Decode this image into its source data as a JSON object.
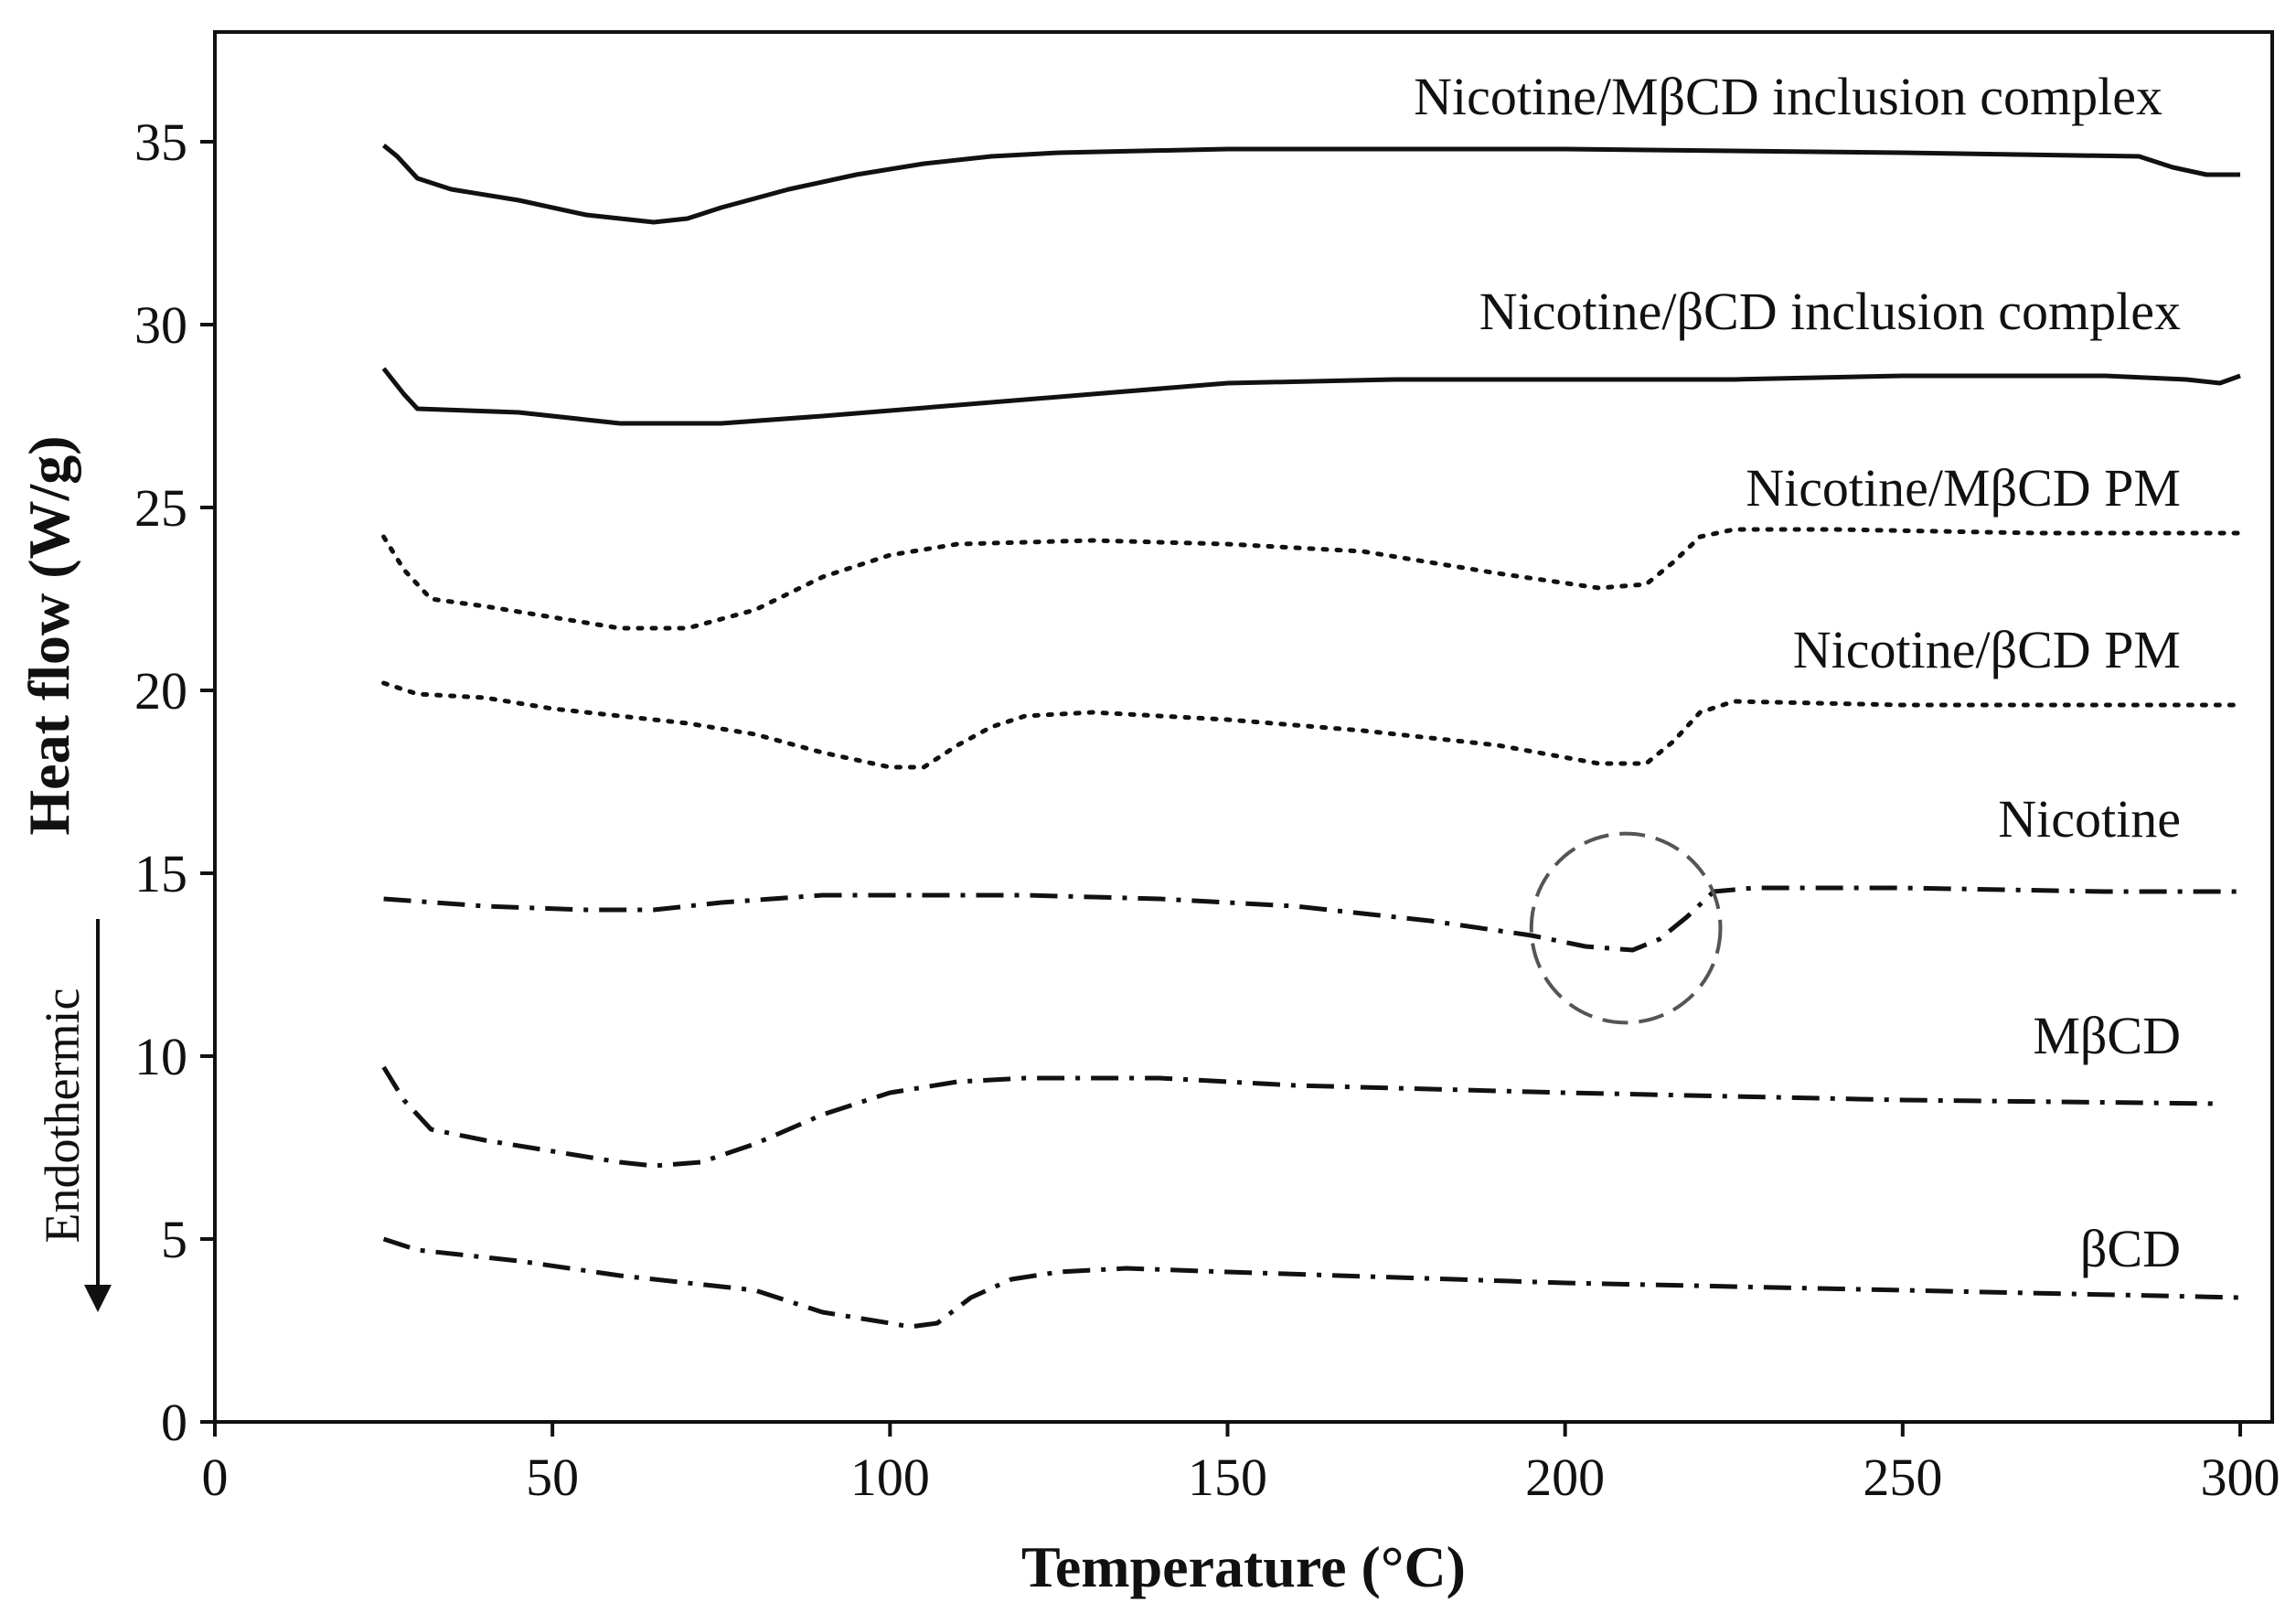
{
  "chart_data": {
    "type": "line",
    "title": "",
    "xlabel": "Temperature (°C)",
    "ylabel": "Heat flow (W/g)",
    "xlim": [
      0,
      300
    ],
    "ylim": [
      0,
      38
    ],
    "xticks": [
      "0",
      "50",
      "100",
      "150",
      "200",
      "250",
      "300"
    ],
    "yticks": [
      "0",
      "5",
      "10",
      "15",
      "20",
      "25",
      "30",
      "35"
    ],
    "grid": false,
    "legend": "inline labels",
    "endotherm_label": "Endothermic",
    "series": [
      {
        "name": "Nicotine/MβCD inclusion complex",
        "style": "solid",
        "x": [
          25,
          27,
          30,
          35,
          45,
          55,
          65,
          70,
          75,
          85,
          95,
          105,
          115,
          125,
          150,
          200,
          250,
          285,
          290,
          295,
          300
        ],
        "y": [
          34.9,
          34.6,
          34.0,
          33.7,
          33.4,
          33.0,
          32.8,
          32.9,
          33.2,
          33.7,
          34.1,
          34.4,
          34.6,
          34.7,
          34.8,
          34.8,
          34.7,
          34.6,
          34.3,
          34.1,
          34.1
        ]
      },
      {
        "name": "Nicotine/βCD inclusion complex",
        "style": "solid",
        "x": [
          25,
          28,
          30,
          45,
          60,
          75,
          90,
          110,
          130,
          150,
          175,
          200,
          225,
          250,
          280,
          292,
          297,
          300
        ],
        "y": [
          28.8,
          28.1,
          27.7,
          27.6,
          27.3,
          27.3,
          27.5,
          27.8,
          28.1,
          28.4,
          28.5,
          28.5,
          28.5,
          28.6,
          28.6,
          28.5,
          28.4,
          28.6
        ]
      },
      {
        "name": "Nicotine/MβCD PM",
        "style": "dotted",
        "x": [
          25,
          28,
          32,
          40,
          50,
          60,
          70,
          80,
          90,
          100,
          110,
          130,
          150,
          170,
          190,
          205,
          212,
          216,
          220,
          225,
          240,
          270,
          300
        ],
        "y": [
          24.2,
          23.3,
          22.5,
          22.3,
          22.0,
          21.7,
          21.7,
          22.2,
          23.1,
          23.7,
          24.0,
          24.1,
          24.0,
          23.8,
          23.2,
          22.8,
          22.9,
          23.5,
          24.2,
          24.4,
          24.4,
          24.3,
          24.3
        ]
      },
      {
        "name": "Nicotine/βCD PM",
        "style": "dotted",
        "x": [
          25,
          30,
          40,
          50,
          60,
          70,
          80,
          90,
          100,
          105,
          110,
          115,
          120,
          130,
          150,
          170,
          190,
          205,
          212,
          216,
          220,
          225,
          250,
          300
        ],
        "y": [
          20.2,
          19.9,
          19.8,
          19.5,
          19.3,
          19.1,
          18.8,
          18.3,
          17.9,
          17.9,
          18.5,
          19.0,
          19.3,
          19.4,
          19.2,
          18.9,
          18.5,
          18.0,
          18.0,
          18.6,
          19.4,
          19.7,
          19.6,
          19.6
        ]
      },
      {
        "name": "Nicotine",
        "style": "dash-dot",
        "x": [
          25,
          40,
          55,
          65,
          75,
          90,
          105,
          120,
          140,
          160,
          180,
          195,
          203,
          210,
          214,
          218,
          222,
          228,
          250,
          280,
          300
        ],
        "y": [
          14.3,
          14.1,
          14.0,
          14.0,
          14.2,
          14.4,
          14.4,
          14.4,
          14.3,
          14.1,
          13.7,
          13.3,
          13.0,
          12.9,
          13.2,
          13.8,
          14.5,
          14.6,
          14.6,
          14.5,
          14.5
        ]
      },
      {
        "name": "MβCD",
        "style": "dash-dot",
        "x": [
          25,
          28,
          32,
          40,
          50,
          60,
          65,
          72,
          80,
          90,
          100,
          110,
          120,
          140,
          160,
          200,
          250,
          297
        ],
        "y": [
          9.7,
          8.8,
          8.0,
          7.7,
          7.4,
          7.1,
          7.0,
          7.1,
          7.6,
          8.4,
          9.0,
          9.3,
          9.4,
          9.4,
          9.2,
          9.0,
          8.8,
          8.7
        ]
      },
      {
        "name": "βCD",
        "style": "dash-dot",
        "x": [
          25,
          30,
          45,
          60,
          70,
          80,
          90,
          100,
          103,
          107,
          112,
          118,
          125,
          135,
          150,
          200,
          250,
          300
        ],
        "y": [
          5.0,
          4.7,
          4.4,
          4.0,
          3.8,
          3.6,
          3.0,
          2.7,
          2.6,
          2.7,
          3.4,
          3.9,
          4.1,
          4.2,
          4.1,
          3.8,
          3.6,
          3.4
        ]
      }
    ],
    "annotations": [
      {
        "type": "dashed-circle",
        "x": 209,
        "y": 13.5,
        "radius_x_units": 14,
        "note": "highlighted nicotine transition"
      }
    ]
  }
}
